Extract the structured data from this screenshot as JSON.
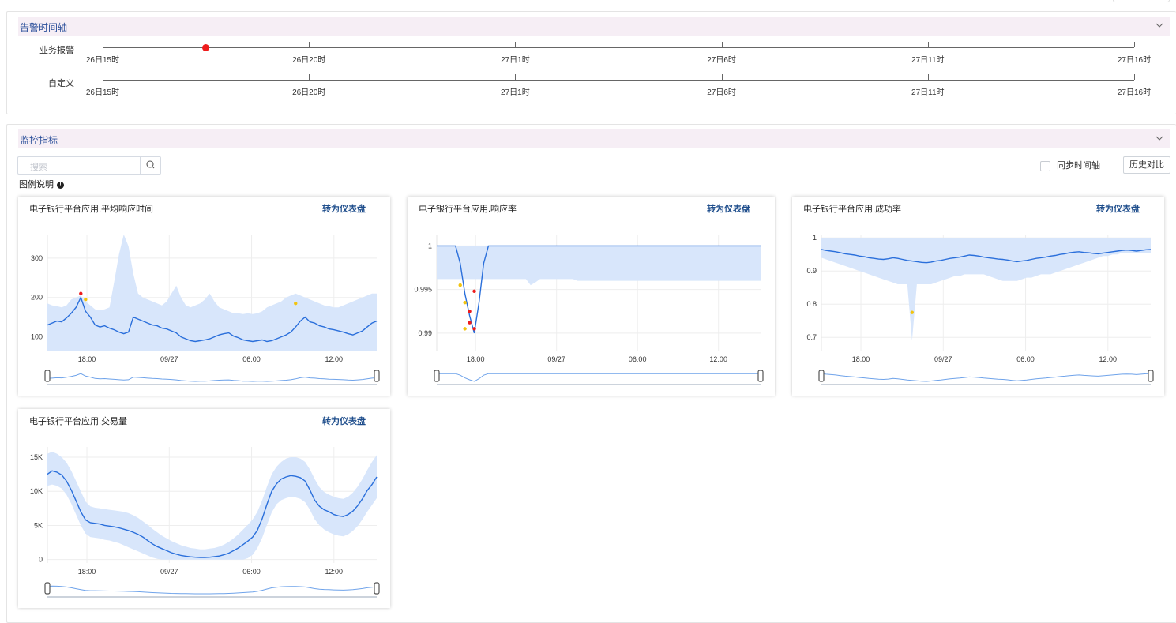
{
  "alert_timeline": {
    "title": "告警时间轴",
    "rows": [
      {
        "label": "业务报警",
        "alarm_markers": [
          {
            "time": "26日17时30分",
            "color": "#ee1c1c"
          }
        ]
      },
      {
        "label": "自定义",
        "alarm_markers": []
      }
    ],
    "tick_labels": [
      "26日15时",
      "26日20时",
      "27日1时",
      "27日6时",
      "27日11时",
      "27日16时"
    ]
  },
  "monitor": {
    "title": "监控指标",
    "search_placeholder": "搜索",
    "legend_note": "图例说明",
    "sync_label": "同步时间轴",
    "sync_checked": false,
    "history_button": "历史对比",
    "convert_label": "转为仪表盘",
    "x_tick_labels": [
      "18:00",
      "09/27",
      "06:00",
      "12:00"
    ]
  },
  "colors": {
    "accent": "#2b4f9a",
    "line": "#2a6fdb",
    "band": "#d8e6fb",
    "alarm_red": "#ee1c1c",
    "alarm_yellow": "#f2c40f",
    "header_bg": "#f6eef5"
  },
  "chart_data": [
    {
      "type": "line",
      "title": "电子银行平台应用.平均响应时间",
      "y_ticks": [
        "100",
        "200",
        "300"
      ],
      "ylim": [
        65,
        360
      ],
      "x_ticks": [
        "18:00",
        "09/27",
        "06:00",
        "12:00"
      ],
      "series": [
        {
          "values": [
            130,
            135,
            140,
            138,
            148,
            160,
            175,
            200,
            165,
            150,
            130,
            125,
            128,
            122,
            118,
            112,
            108,
            112,
            150,
            145,
            140,
            135,
            130,
            128,
            122,
            120,
            115,
            110,
            100,
            95,
            90,
            88,
            90,
            92,
            95,
            100,
            105,
            108,
            110,
            102,
            98,
            92,
            90,
            88,
            90,
            92,
            88,
            90,
            95,
            100,
            105,
            112,
            125,
            140,
            150,
            138,
            135,
            128,
            125,
            120,
            118,
            115,
            112,
            108,
            105,
            110,
            115,
            125,
            135,
            140
          ]
        }
      ],
      "band_upper": [
        185,
        180,
        178,
        175,
        180,
        195,
        200,
        205,
        190,
        180,
        170,
        168,
        170,
        175,
        240,
        310,
        360,
        330,
        260,
        210,
        200,
        195,
        190,
        185,
        180,
        190,
        210,
        230,
        200,
        180,
        175,
        180,
        185,
        195,
        210,
        190,
        175,
        170,
        165,
        160,
        160,
        158,
        160,
        158,
        160,
        165,
        175,
        180,
        185,
        190,
        200,
        205,
        210,
        205,
        200,
        195,
        190,
        185,
        180,
        178,
        175,
        175,
        180,
        185,
        190,
        195,
        200,
        205,
        210,
        210
      ],
      "band_lower": [
        65,
        65,
        65,
        65,
        65,
        65,
        65,
        65,
        65,
        65,
        65,
        65,
        65,
        65,
        65,
        65,
        65,
        65,
        65,
        65,
        65,
        65,
        65,
        65,
        65,
        65,
        65,
        65,
        65,
        65,
        65,
        65,
        65,
        65,
        65,
        65,
        65,
        65,
        65,
        65,
        65,
        65,
        65,
        65,
        65,
        65,
        65,
        65,
        65,
        65,
        65,
        65,
        65,
        65,
        65,
        65,
        65,
        65,
        65,
        65,
        65,
        65,
        65,
        65,
        65,
        65,
        65,
        65,
        65,
        65
      ],
      "alarm_points": [
        {
          "i": 7,
          "v": 210,
          "color": "#ee1c1c"
        },
        {
          "i": 8,
          "v": 195,
          "color": "#f2c40f"
        },
        {
          "i": 52,
          "v": 185,
          "color": "#f2c40f"
        }
      ]
    },
    {
      "type": "line",
      "title": "电子银行平台应用.响应率",
      "y_ticks": [
        "0.99",
        "0.995",
        "1"
      ],
      "ylim": [
        0.988,
        1.0013
      ],
      "x_ticks": [
        "18:00",
        "09/27",
        "06:00",
        "12:00"
      ],
      "series": [
        {
          "values": [
            1,
            1,
            1,
            1,
            1,
            0.998,
            0.9945,
            0.992,
            0.99,
            0.9935,
            0.998,
            1,
            1,
            1,
            1,
            1,
            1,
            1,
            1,
            1,
            1,
            1,
            1,
            1,
            1,
            1,
            1,
            1,
            1,
            1,
            1,
            1,
            1,
            1,
            1,
            1,
            1,
            1,
            1,
            1,
            1,
            1,
            1,
            1,
            1,
            1,
            1,
            1,
            1,
            1,
            1,
            1,
            1,
            1,
            1,
            1,
            1,
            1,
            1,
            1,
            1,
            1,
            1,
            1,
            1,
            1,
            1,
            1,
            1,
            1
          ]
        }
      ],
      "band_upper": [
        1,
        1,
        1,
        1,
        1,
        1,
        1,
        1,
        1,
        1,
        1,
        1,
        1,
        1,
        1,
        1,
        1,
        1,
        1,
        1,
        1,
        1,
        1,
        1,
        1,
        1,
        1,
        1,
        1,
        1,
        1,
        1,
        1,
        1,
        1,
        1,
        1,
        1,
        1,
        1,
        1,
        1,
        1,
        1,
        1,
        1,
        1,
        1,
        1,
        1,
        1,
        1,
        1,
        1,
        1,
        1,
        1,
        1,
        1,
        1,
        1,
        1,
        1,
        1,
        1,
        1,
        1,
        1,
        1,
        1
      ],
      "band_lower": [
        0.9962,
        0.9962,
        0.9962,
        0.9962,
        0.9962,
        0.9962,
        0.9962,
        0.9962,
        0.9962,
        0.9962,
        0.9962,
        0.9962,
        0.9962,
        0.9962,
        0.9962,
        0.9962,
        0.9962,
        0.9962,
        0.9962,
        0.9962,
        0.9955,
        0.9958,
        0.9962,
        0.9962,
        0.9962,
        0.9962,
        0.9962,
        0.9962,
        0.9962,
        0.9962,
        0.996,
        0.996,
        0.996,
        0.996,
        0.996,
        0.996,
        0.996,
        0.996,
        0.996,
        0.996,
        0.996,
        0.996,
        0.996,
        0.996,
        0.996,
        0.996,
        0.996,
        0.996,
        0.996,
        0.996,
        0.996,
        0.996,
        0.996,
        0.996,
        0.996,
        0.996,
        0.996,
        0.996,
        0.996,
        0.996,
        0.996,
        0.996,
        0.996,
        0.996,
        0.996,
        0.996,
        0.996,
        0.996,
        0.996,
        0.996
      ],
      "alarm_points": [
        {
          "i": 5,
          "v": 0.9955,
          "color": "#f2c40f"
        },
        {
          "i": 6,
          "v": 0.9935,
          "color": "#f2c40f"
        },
        {
          "i": 7,
          "v": 0.9925,
          "color": "#ee1c1c"
        },
        {
          "i": 7,
          "v": 0.9912,
          "color": "#ee1c1c"
        },
        {
          "i": 8,
          "v": 0.9905,
          "color": "#ee1c1c"
        },
        {
          "i": 6,
          "v": 0.9905,
          "color": "#f2c40f"
        },
        {
          "i": 8,
          "v": 0.9948,
          "color": "#ee1c1c"
        }
      ]
    },
    {
      "type": "line",
      "title": "电子银行平台应用.成功率",
      "y_ticks": [
        "0.7",
        "0.8",
        "0.9",
        "1"
      ],
      "ylim": [
        0.66,
        1.01
      ],
      "x_ticks": [
        "18:00",
        "09/27",
        "06:00",
        "12:00"
      ],
      "series": [
        {
          "values": [
            0.965,
            0.962,
            0.96,
            0.958,
            0.955,
            0.952,
            0.95,
            0.948,
            0.945,
            0.943,
            0.94,
            0.938,
            0.936,
            0.935,
            0.937,
            0.94,
            0.938,
            0.935,
            0.932,
            0.93,
            0.928,
            0.926,
            0.925,
            0.927,
            0.93,
            0.932,
            0.935,
            0.938,
            0.94,
            0.942,
            0.945,
            0.948,
            0.947,
            0.945,
            0.942,
            0.94,
            0.938,
            0.936,
            0.935,
            0.933,
            0.93,
            0.928,
            0.93,
            0.932,
            0.935,
            0.938,
            0.94,
            0.942,
            0.945,
            0.947,
            0.95,
            0.952,
            0.955,
            0.957,
            0.958,
            0.956,
            0.955,
            0.953,
            0.952,
            0.954,
            0.956,
            0.958,
            0.96,
            0.962,
            0.963,
            0.962,
            0.96,
            0.962,
            0.964,
            0.965
          ]
        }
      ],
      "band_upper": [
        1,
        1,
        1,
        1,
        1,
        1,
        1,
        1,
        1,
        1,
        1,
        1,
        1,
        1,
        1,
        1,
        1,
        1,
        1,
        1,
        1,
        1,
        1,
        1,
        1,
        1,
        1,
        1,
        1,
        1,
        1,
        1,
        1,
        1,
        1,
        1,
        1,
        1,
        1,
        1,
        1,
        1,
        1,
        1,
        1,
        1,
        1,
        1,
        1,
        1,
        1,
        1,
        1,
        1,
        1,
        1,
        1,
        1,
        1,
        1,
        1,
        1,
        1,
        1,
        1,
        1,
        1,
        1,
        1,
        1
      ],
      "band_lower": [
        0.94,
        0.935,
        0.93,
        0.925,
        0.92,
        0.915,
        0.91,
        0.905,
        0.9,
        0.895,
        0.89,
        0.885,
        0.88,
        0.875,
        0.87,
        0.865,
        0.86,
        0.86,
        0.86,
        0.69,
        0.86,
        0.86,
        0.86,
        0.86,
        0.865,
        0.87,
        0.875,
        0.88,
        0.885,
        0.885,
        0.89,
        0.89,
        0.89,
        0.89,
        0.89,
        0.885,
        0.88,
        0.875,
        0.87,
        0.87,
        0.87,
        0.87,
        0.875,
        0.88,
        0.88,
        0.885,
        0.89,
        0.89,
        0.89,
        0.895,
        0.9,
        0.905,
        0.91,
        0.915,
        0.92,
        0.925,
        0.93,
        0.935,
        0.94,
        0.945,
        0.945,
        0.95,
        0.95,
        0.955,
        0.955,
        0.955,
        0.955,
        0.955,
        0.955,
        0.955
      ],
      "alarm_points": [
        {
          "i": 19,
          "v": 0.775,
          "color": "#f2c40f"
        }
      ]
    },
    {
      "type": "line",
      "title": "电子银行平台应用.交易量",
      "y_ticks": [
        "0",
        "5K",
        "10K",
        "15K"
      ],
      "ylim": [
        -500,
        16500
      ],
      "x_ticks": [
        "18:00",
        "09/27",
        "06:00",
        "12:00"
      ],
      "series": [
        {
          "values": [
            12500,
            13000,
            12800,
            12400,
            11500,
            10200,
            8600,
            7000,
            5800,
            5400,
            5300,
            5200,
            5000,
            4900,
            4800,
            4650,
            4450,
            4250,
            4000,
            3700,
            3300,
            2800,
            2300,
            1900,
            1600,
            1300,
            1000,
            800,
            600,
            500,
            400,
            350,
            300,
            300,
            350,
            420,
            520,
            700,
            950,
            1300,
            1700,
            2200,
            2700,
            3300,
            4300,
            6000,
            8100,
            10000,
            11100,
            11800,
            12100,
            12300,
            12200,
            12000,
            11500,
            10200,
            8700,
            7800,
            7300,
            7000,
            6600,
            6400,
            6300,
            6600,
            7100,
            7900,
            8900,
            10100,
            11000,
            12100
          ]
        }
      ],
      "band_upper": [
        15500,
        15800,
        15500,
        15000,
        14200,
        13000,
        11500,
        10000,
        8500,
        7800,
        7600,
        7500,
        7400,
        7300,
        7200,
        7100,
        7000,
        6800,
        6500,
        6100,
        5600,
        5100,
        4500,
        4000,
        3500,
        3100,
        2700,
        2400,
        2100,
        1900,
        1700,
        1600,
        1500,
        1500,
        1600,
        1700,
        1900,
        2200,
        2600,
        3100,
        3700,
        4400,
        5100,
        5900,
        7000,
        8700,
        10700,
        12500,
        13600,
        14300,
        14800,
        15000,
        15000,
        14800,
        14300,
        13200,
        11800,
        10600,
        9900,
        9500,
        9200,
        9000,
        8900,
        9200,
        9800,
        10700,
        11800,
        13100,
        14300,
        15300
      ],
      "band_lower": [
        10800,
        11000,
        10800,
        10400,
        9500,
        8200,
        6600,
        5000,
        3800,
        3300,
        3200,
        3100,
        2900,
        2800,
        2600,
        2400,
        2100,
        1800,
        1500,
        1200,
        900,
        600,
        300,
        100,
        0,
        0,
        0,
        0,
        0,
        0,
        0,
        0,
        0,
        0,
        0,
        0,
        0,
        0,
        0,
        0,
        0,
        0,
        200,
        700,
        1700,
        3200,
        5100,
        6900,
        8100,
        8700,
        9000,
        9200,
        9100,
        8900,
        8400,
        7300,
        5900,
        5000,
        4400,
        4000,
        3700,
        3500,
        3400,
        3700,
        4200,
        4900,
        5900,
        7000,
        8000,
        9000
      ],
      "alarm_points": []
    }
  ]
}
